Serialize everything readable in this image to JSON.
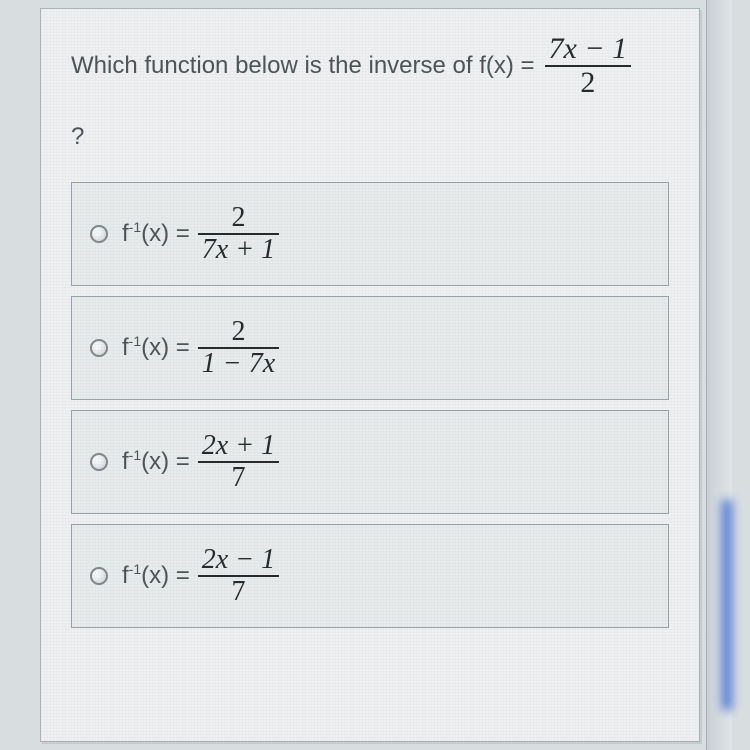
{
  "colors": {
    "page_bg": "#eef0f1",
    "body_bg": "#d8dde0",
    "option_border": "#9aa4aa",
    "option_bg": "#e8ebec",
    "text": "#4e5558",
    "math": "#262b2d",
    "accent_glow": "#3d6bd3"
  },
  "typography": {
    "question_fontsize": 24,
    "formula_fontsize": 24,
    "fraction_fontsize": 28
  },
  "question": {
    "prefix": "Which function below is the inverse of f(x) =",
    "fraction": {
      "num": "7x − 1",
      "den": "2"
    },
    "suffix": "?"
  },
  "lhs_label": "f⁻¹(x) =",
  "options": [
    {
      "num": "2",
      "den": "7x + 1"
    },
    {
      "num": "2",
      "den": "1 − 7x"
    },
    {
      "num": "2x + 1",
      "den": "7"
    },
    {
      "num": "2x − 1",
      "den": "7"
    }
  ]
}
